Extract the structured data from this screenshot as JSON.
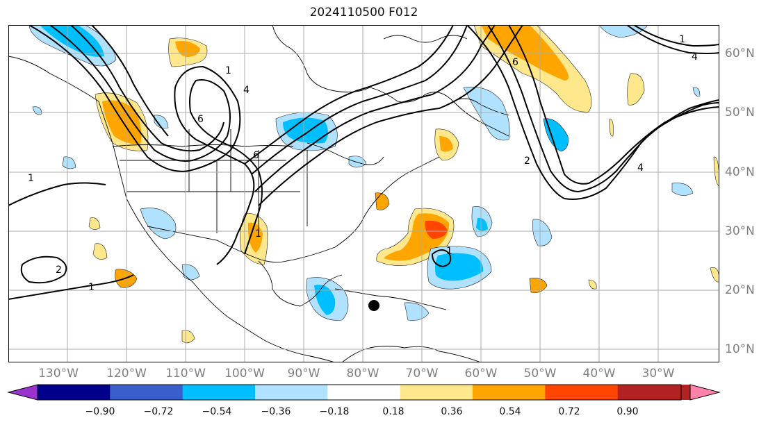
{
  "title": "2024110500 F012",
  "longitude_labels": [
    "130°W",
    "120°W",
    "110°W",
    "100°W",
    "90°W",
    "80°W",
    "70°W",
    "60°W",
    "50°W",
    "40°W",
    "30°W"
  ],
  "latitude_labels": [
    "60°N",
    "50°N",
    "40°N",
    "30°N",
    "20°N",
    "10°N"
  ],
  "colorbar": {
    "ticks": [
      "−0.90",
      "−0.72",
      "−0.54",
      "−0.36",
      "−0.18",
      "0.18",
      "0.36",
      "0.54",
      "0.72",
      "0.90"
    ],
    "colors": [
      "#9a32cd",
      "#00008b",
      "#3a5fcd",
      "#00bfff",
      "#b0e2ff",
      "#ffffff",
      "#ffe78b",
      "#ffa500",
      "#ff4500",
      "#b22222",
      "#ff82ab"
    ]
  },
  "contour_labels": [
    "1",
    "2",
    "4",
    "6",
    "8"
  ]
}
